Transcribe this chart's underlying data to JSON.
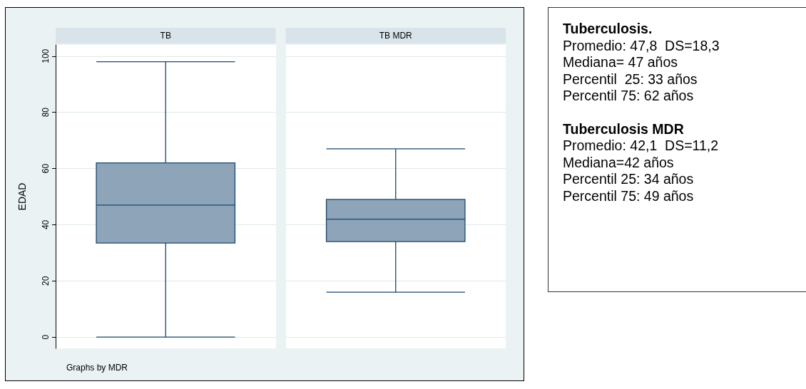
{
  "chart_data": [
    {
      "type": "box",
      "ylabel": "EDAD",
      "categories": [
        "TB",
        "TB MDR"
      ],
      "boxes": [
        {
          "low": 0,
          "q1": 33.5,
          "median": 47,
          "q3": 62,
          "high": 98
        },
        {
          "low": 16,
          "q1": 34,
          "median": 42,
          "q3": 49,
          "high": 67
        }
      ],
      "color": "#8ea4b8",
      "ylim": [
        -4,
        104
      ],
      "yticks": [
        0,
        20,
        40,
        60,
        80,
        100
      ],
      "grid": "y",
      "annotations": [
        "Graphs by MDR"
      ]
    },
    {
      "type": "other",
      "title": "Tuberculosis.",
      "annotations": [
        "Promedio: 47,8  DS=18,3",
        "Mediana= 47 años",
        "Percentil  25: 33 años",
        "Percentil 75: 62 años"
      ]
    },
    {
      "type": "other",
      "title": "Tuberculosis MDR",
      "annotations": [
        "Promedio: 42,1  DS=11,2",
        "Mediana=42 años",
        "Percentil 25: 34 años",
        "Percentil 75: 49 años"
      ]
    }
  ]
}
